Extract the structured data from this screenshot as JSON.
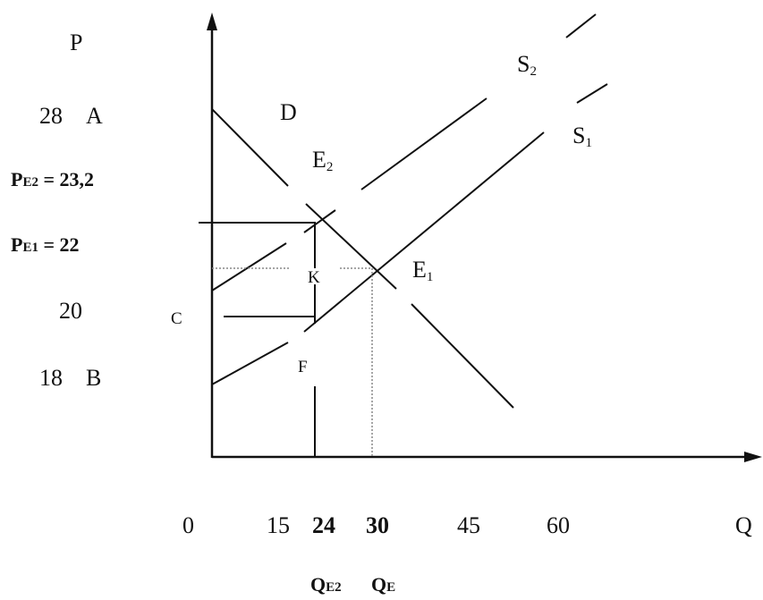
{
  "axes": {
    "y_title": "P",
    "x_title": "Q"
  },
  "y_labels": {
    "pa_value": "28",
    "pa_point": "A",
    "pe2_prefix": "P",
    "pe2_sub": "E2",
    "pe2_value": " = 23,2",
    "pe1_prefix": "P",
    "pe1_sub": "E1",
    "pe1_value": " = 22",
    "p20_value": "20",
    "pb_value": "18",
    "pb_point": "B"
  },
  "x_labels": {
    "q0": "0",
    "q15": "15",
    "q24": "24",
    "q30": "30",
    "q45": "45",
    "q60": "60",
    "qe2_prefix": "Q",
    "qe2_sub": "E2",
    "qe_prefix": "Q",
    "qe_sub": "E"
  },
  "curves": {
    "demand_label": "D",
    "s1_letter": "S",
    "s1_index": "1",
    "s2_letter": "S",
    "s2_index": "2"
  },
  "points": {
    "e1_letter": "E",
    "e1_index": "1",
    "e2_letter": "E",
    "e2_index": "2",
    "k": "K",
    "c": "C",
    "f": "F"
  },
  "colors": {
    "line": "#111111",
    "dotted": "#888888",
    "background": "#ffffff"
  }
}
